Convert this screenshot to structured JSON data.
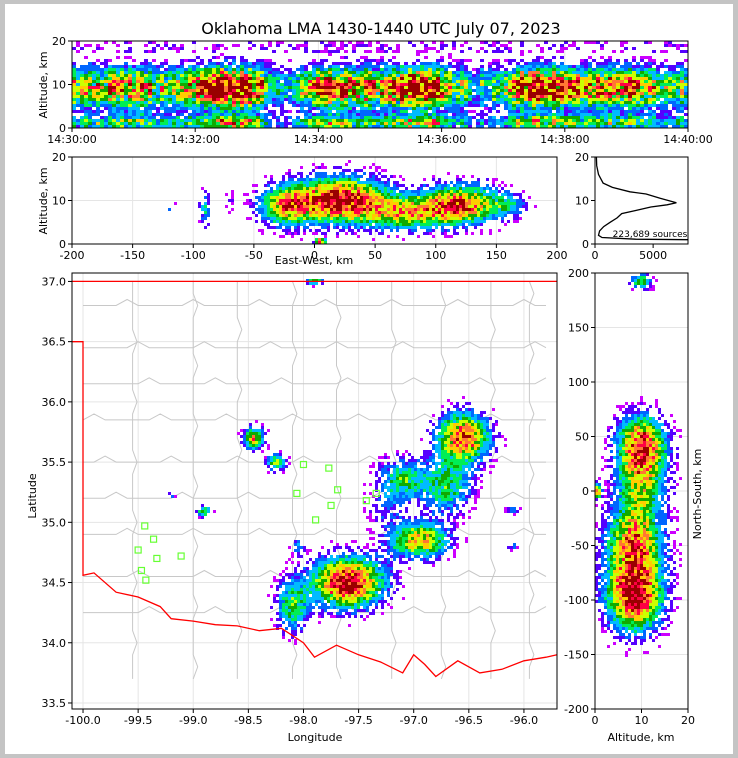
{
  "title": "Oklahoma LMA 1430-1440 UTC July 07, 2023",
  "colors": {
    "density_scale": [
      "#ffffff",
      "#cc00ff",
      "#5500ff",
      "#0066ff",
      "#00bbff",
      "#00ee55",
      "#11aa00",
      "#ccff00",
      "#ffcc00",
      "#ff7733",
      "#ff0044",
      "#990000"
    ],
    "border_red": "#ff0000",
    "county_lines": "#c8c8c8",
    "station_marker": "#66ff33",
    "grid": "#e5e5e5"
  },
  "chart_data": [
    {
      "name": "altitude-time",
      "type": "heatmap",
      "ylabel": "Altitude, km",
      "xlim": [
        "14:30:00",
        "14:40:00"
      ],
      "ylim": [
        0,
        20
      ],
      "xticks": [
        "14:30:00",
        "14:32:00",
        "14:34:00",
        "14:36:00",
        "14:38:00",
        "14:40:00"
      ],
      "yticks": [
        0,
        10,
        20
      ],
      "grid": true
    },
    {
      "name": "altitude-east-west",
      "type": "heatmap",
      "xlabel": "East-West, km",
      "ylabel": "Altitude, km",
      "xlim": [
        -200,
        200
      ],
      "ylim": [
        0,
        20
      ],
      "xticks": [
        -200,
        -150,
        -100,
        -50,
        0,
        50,
        100,
        150,
        200
      ],
      "yticks": [
        0,
        10,
        20
      ],
      "clusters": [
        {
          "x": 20,
          "z": 10,
          "sx": 28,
          "sz": 3.5,
          "peak": 1.0
        },
        {
          "x": -25,
          "z": 8.5,
          "sx": 14,
          "sz": 3,
          "peak": 0.55
        },
        {
          "x": 120,
          "z": 9,
          "sx": 22,
          "sz": 3,
          "peak": 0.85
        },
        {
          "x": 75,
          "z": 7,
          "sx": 22,
          "sz": 2.5,
          "peak": 0.55
        },
        {
          "x": 160,
          "z": 9,
          "sx": 10,
          "sz": 2,
          "peak": 0.25
        },
        {
          "x": -90,
          "z": 8,
          "sx": 3,
          "sz": 2.5,
          "peak": 0.35
        },
        {
          "x": -118,
          "z": 8,
          "sx": 2,
          "sz": 1.5,
          "peak": 0.25
        },
        {
          "x": -70,
          "z": 10,
          "sx": 2,
          "sz": 2,
          "peak": 0.15
        },
        {
          "x": 5,
          "z": 0.6,
          "sx": 3,
          "sz": 0.5,
          "peak": 0.95
        }
      ],
      "grid": true
    },
    {
      "name": "altitude-histogram",
      "type": "line",
      "annotation": "223,689 sources",
      "xlim": [
        0,
        8000
      ],
      "ylim": [
        0,
        20
      ],
      "xticks": [
        0,
        5000
      ],
      "yticks": [
        0,
        10,
        20
      ],
      "series": [
        {
          "points": [
            [
              120,
              20
            ],
            [
              150,
              18
            ],
            [
              300,
              16
            ],
            [
              700,
              14
            ],
            [
              1500,
              13
            ],
            [
              3000,
              12
            ],
            [
              4400,
              11.5
            ],
            [
              5600,
              10.5
            ],
            [
              7000,
              9.5
            ],
            [
              6200,
              9
            ],
            [
              4800,
              8.5
            ],
            [
              3500,
              7.7
            ],
            [
              2300,
              7
            ],
            [
              1900,
              6
            ],
            [
              1300,
              5
            ],
            [
              750,
              4
            ],
            [
              400,
              3
            ],
            [
              300,
              2
            ],
            [
              600,
              1.5
            ],
            [
              3500,
              1.1
            ],
            [
              8000,
              1.0
            ]
          ]
        }
      ]
    },
    {
      "name": "plan-view",
      "type": "heatmap",
      "xlabel": "Longitude",
      "ylabel": "Latitude",
      "xlim": [
        -100.1,
        -95.7
      ],
      "ylim": [
        33.45,
        37.07
      ],
      "xticks": [
        -100.0,
        -99.5,
        -99.0,
        -98.5,
        -98.0,
        -97.5,
        -97.0,
        -96.5,
        -96.0
      ],
      "yticks": [
        33.5,
        34.0,
        34.5,
        35.0,
        35.5,
        36.0,
        36.5,
        37.0
      ],
      "clusters": [
        {
          "lon": -97.6,
          "lat": 34.5,
          "slon": 0.22,
          "slat": 0.14,
          "peak": 1.0
        },
        {
          "lon": -97.25,
          "lat": 35.1,
          "slon": 0.12,
          "slat": 0.12,
          "peak": 0.15
        },
        {
          "lon": -96.95,
          "lat": 34.85,
          "slon": 0.18,
          "slat": 0.1,
          "peak": 0.7
        },
        {
          "lon": -97.1,
          "lat": 35.35,
          "slon": 0.15,
          "slat": 0.12,
          "peak": 0.45
        },
        {
          "lon": -96.55,
          "lat": 35.7,
          "slon": 0.16,
          "slat": 0.14,
          "peak": 0.85
        },
        {
          "lon": -96.7,
          "lat": 35.3,
          "slon": 0.15,
          "slat": 0.15,
          "peak": 0.45
        },
        {
          "lon": -98.1,
          "lat": 34.3,
          "slon": 0.1,
          "slat": 0.15,
          "peak": 0.45
        },
        {
          "lon": -98.45,
          "lat": 35.7,
          "slon": 0.06,
          "slat": 0.06,
          "peak": 0.7
        },
        {
          "lon": -98.25,
          "lat": 35.5,
          "slon": 0.06,
          "slat": 0.05,
          "peak": 0.5
        },
        {
          "lon": -97.9,
          "lat": 37.0,
          "slon": 0.05,
          "slat": 0.02,
          "peak": 0.6
        },
        {
          "lon": -98.9,
          "lat": 35.09,
          "slon": 0.04,
          "slat": 0.03,
          "peak": 0.55
        },
        {
          "lon": -99.2,
          "lat": 35.22,
          "slon": 0.02,
          "slat": 0.02,
          "peak": 0.3
        },
        {
          "lon": -96.1,
          "lat": 35.1,
          "slon": 0.04,
          "slat": 0.02,
          "peak": 0.3
        },
        {
          "lon": -96.1,
          "lat": 34.8,
          "slon": 0.03,
          "slat": 0.02,
          "peak": 0.25
        },
        {
          "lon": -98.05,
          "lat": 34.8,
          "slon": 0.04,
          "slat": 0.04,
          "peak": 0.3
        }
      ],
      "stations": [
        [
          -99.44,
          34.97
        ],
        [
          -99.36,
          34.86
        ],
        [
          -99.5,
          34.77
        ],
        [
          -99.33,
          34.7
        ],
        [
          -99.11,
          34.72
        ],
        [
          -99.47,
          34.6
        ],
        [
          -99.43,
          34.52
        ],
        [
          -98.06,
          35.24
        ],
        [
          -98.0,
          35.48
        ],
        [
          -97.77,
          35.45
        ],
        [
          -97.69,
          35.27
        ],
        [
          -97.89,
          35.02
        ],
        [
          -97.43,
          35.18
        ],
        [
          -97.34,
          35.24
        ],
        [
          -97.75,
          35.14
        ]
      ],
      "grid": true
    },
    {
      "name": "altitude-north-south",
      "type": "heatmap",
      "xlabel": "Altitude, km",
      "ylabel": "North-South, km",
      "xlim": [
        0,
        20
      ],
      "ylim": [
        -200,
        200
      ],
      "xticks": [
        0,
        10,
        20
      ],
      "yticks": [
        -200,
        -150,
        -100,
        -50,
        0,
        50,
        100,
        150,
        200
      ],
      "clusters": [
        {
          "z": 10,
          "y": 42,
          "sz": 3.5,
          "sy": 18,
          "peak": 0.9
        },
        {
          "z": 10,
          "y": 5,
          "sz": 3.5,
          "sy": 18,
          "peak": 0.5
        },
        {
          "z": 8.5,
          "y": -45,
          "sz": 4,
          "sy": 22,
          "peak": 0.75
        },
        {
          "z": 8.5,
          "y": -95,
          "sz": 4,
          "sy": 22,
          "peak": 1.0
        },
        {
          "z": 10,
          "y": 192,
          "sz": 1.5,
          "sy": 5,
          "peak": 0.5
        },
        {
          "z": 0.5,
          "y": 0,
          "sz": 0.6,
          "sy": 4,
          "peak": 0.9
        }
      ],
      "grid": true
    }
  ]
}
